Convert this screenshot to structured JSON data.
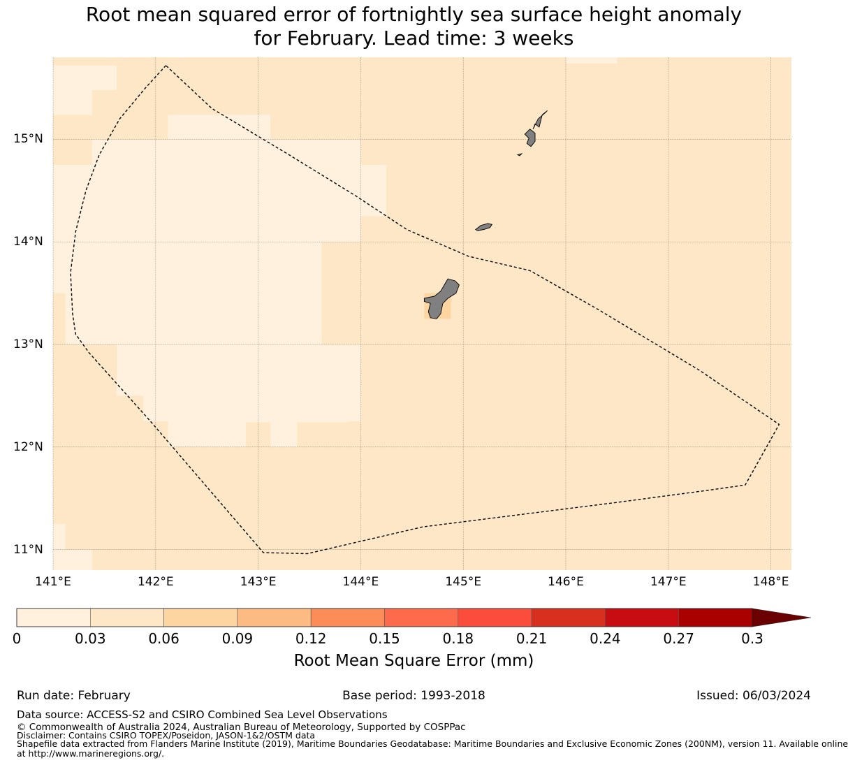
{
  "title": {
    "line1": "Root mean squared error of fortnightly sea surface height anomaly",
    "line2": "for February. Lead time: 3 weeks"
  },
  "map": {
    "lon_range": [
      141.0,
      148.2
    ],
    "lat_range": [
      10.8,
      15.8
    ],
    "lat_ticks": [
      {
        "value": 15,
        "label": "15°N"
      },
      {
        "value": 14,
        "label": "14°N"
      },
      {
        "value": 13,
        "label": "13°N"
      },
      {
        "value": 12,
        "label": "12°N"
      },
      {
        "value": 11,
        "label": "11°N"
      }
    ],
    "lon_ticks": [
      {
        "value": 141,
        "label": "141°E"
      },
      {
        "value": 142,
        "label": "142°E"
      },
      {
        "value": 143,
        "label": "143°E"
      },
      {
        "value": 144,
        "label": "144°E"
      },
      {
        "value": 145,
        "label": "145°E"
      },
      {
        "value": 146,
        "label": "146°E"
      },
      {
        "value": 147,
        "label": "147°E"
      },
      {
        "value": 148,
        "label": "148°E"
      }
    ],
    "gridlines": true,
    "background_rmse_class": "0.03-0.06",
    "colors": {
      "bg_cell": "#fee7c6",
      "low_cell": "#fff1dd",
      "mid_cell": "#fdd5a0",
      "land": "#808080",
      "eez_line": "#000000"
    },
    "low_regions_lonlat": [
      [
        [
          141.0,
          15.72
        ],
        [
          141.62,
          15.72
        ],
        [
          141.62,
          15.48
        ],
        [
          141.38,
          15.48
        ],
        [
          141.38,
          15.24
        ],
        [
          141.0,
          15.24
        ]
      ],
      [
        [
          141.38,
          15.0
        ],
        [
          141.38,
          14.75
        ],
        [
          141.0,
          14.75
        ],
        [
          141.0,
          13.5
        ],
        [
          141.12,
          13.5
        ],
        [
          141.12,
          13.0
        ],
        [
          141.62,
          13.0
        ],
        [
          141.62,
          12.5
        ],
        [
          141.88,
          12.5
        ],
        [
          141.88,
          12.25
        ],
        [
          142.12,
          12.25
        ],
        [
          142.12,
          12.0
        ],
        [
          142.88,
          12.0
        ],
        [
          142.88,
          12.24
        ],
        [
          143.12,
          12.24
        ],
        [
          143.12,
          12.0
        ],
        [
          143.38,
          12.0
        ],
        [
          143.38,
          12.24
        ],
        [
          143.88,
          12.24
        ],
        [
          143.88,
          12.25
        ],
        [
          144.0,
          12.25
        ],
        [
          144.0,
          13.0
        ],
        [
          143.62,
          13.0
        ],
        [
          143.62,
          14.0
        ],
        [
          143.88,
          14.0
        ],
        [
          144.0,
          14.0
        ],
        [
          144.0,
          14.25
        ],
        [
          144.25,
          14.25
        ],
        [
          144.25,
          14.75
        ],
        [
          144.0,
          14.75
        ],
        [
          144.0,
          15.0
        ],
        [
          143.12,
          15.0
        ],
        [
          143.12,
          15.24
        ],
        [
          142.12,
          15.24
        ],
        [
          142.12,
          15.0
        ]
      ],
      [
        [
          141.0,
          11.25
        ],
        [
          141.12,
          11.25
        ],
        [
          141.12,
          11.0
        ],
        [
          141.38,
          11.0
        ],
        [
          141.38,
          10.8
        ],
        [
          141.0,
          10.8
        ]
      ],
      [
        [
          146.0,
          15.8
        ],
        [
          146.5,
          15.8
        ],
        [
          146.5,
          15.74
        ],
        [
          146.0,
          15.74
        ]
      ]
    ],
    "mid_regions_lonlat": [
      [
        [
          144.62,
          13.5
        ],
        [
          144.88,
          13.5
        ],
        [
          144.88,
          13.25
        ],
        [
          144.62,
          13.25
        ]
      ]
    ],
    "eez_boundary_lonlat": [
      [
        142.1,
        15.72
      ],
      [
        141.9,
        15.5
      ],
      [
        141.65,
        15.2
      ],
      [
        141.45,
        14.85
      ],
      [
        141.32,
        14.5
      ],
      [
        141.22,
        14.1
      ],
      [
        141.17,
        13.7
      ],
      [
        141.19,
        13.3
      ],
      [
        141.22,
        13.1
      ],
      [
        141.35,
        12.92
      ],
      [
        141.95,
        12.25
      ],
      [
        143.05,
        10.97
      ],
      [
        143.48,
        10.96
      ],
      [
        144.6,
        11.22
      ],
      [
        146.5,
        11.46
      ],
      [
        147.4,
        11.58
      ],
      [
        147.75,
        11.63
      ],
      [
        148.08,
        12.22
      ],
      [
        147.3,
        12.75
      ],
      [
        146.3,
        13.35
      ],
      [
        145.65,
        13.72
      ],
      [
        145.05,
        13.86
      ],
      [
        144.45,
        14.12
      ],
      [
        143.95,
        14.45
      ],
      [
        143.3,
        14.85
      ],
      [
        142.55,
        15.3
      ]
    ],
    "islands_lonlat": [
      [
        [
          144.62,
          13.45
        ],
        [
          144.72,
          13.47
        ],
        [
          144.78,
          13.52
        ],
        [
          144.85,
          13.64
        ],
        [
          144.92,
          13.62
        ],
        [
          144.96,
          13.58
        ],
        [
          144.93,
          13.5
        ],
        [
          144.85,
          13.45
        ],
        [
          144.8,
          13.4
        ],
        [
          144.78,
          13.3
        ],
        [
          144.74,
          13.25
        ],
        [
          144.68,
          13.26
        ],
        [
          144.66,
          13.32
        ],
        [
          144.68,
          13.4
        ],
        [
          144.62,
          13.42
        ]
      ],
      [
        [
          145.12,
          14.12
        ],
        [
          145.17,
          14.16
        ],
        [
          145.24,
          14.18
        ],
        [
          145.28,
          14.17
        ],
        [
          145.26,
          14.14
        ],
        [
          145.2,
          14.12
        ],
        [
          145.14,
          14.11
        ]
      ],
      [
        [
          145.6,
          15.05
        ],
        [
          145.65,
          15.1
        ],
        [
          145.7,
          15.06
        ],
        [
          145.7,
          14.98
        ],
        [
          145.66,
          14.93
        ],
        [
          145.62,
          14.96
        ],
        [
          145.64,
          15.01
        ]
      ],
      [
        [
          145.68,
          15.1
        ],
        [
          145.73,
          15.2
        ],
        [
          145.8,
          15.26
        ],
        [
          145.82,
          15.28
        ],
        [
          145.77,
          15.24
        ],
        [
          145.74,
          15.12
        ],
        [
          145.7,
          15.15
        ]
      ],
      [
        [
          145.53,
          14.85
        ],
        [
          145.57,
          14.86
        ],
        [
          145.55,
          14.84
        ]
      ]
    ]
  },
  "colorbar": {
    "colors": [
      "#fff1dd",
      "#fee7c6",
      "#fdd5a0",
      "#fdbb84",
      "#fc8d59",
      "#fd6a4c",
      "#fb4d3b",
      "#d8301f",
      "#c70c12",
      "#a90000"
    ],
    "extend_color": "#6b0000",
    "tick_labels": [
      "0",
      "0.03",
      "0.06",
      "0.09",
      "0.12",
      "0.15",
      "0.18",
      "0.21",
      "0.24",
      "0.27",
      "0.3"
    ],
    "label": "Root Mean Square Error (mm)"
  },
  "meta": {
    "run_date": "Run date: February",
    "base_period": "Base period: 1993-2018",
    "issued": "Issued: 06/03/2024"
  },
  "footer": {
    "data_source": "Data source: ACCESS-S2 and CSIRO Combined Sea Level Observations",
    "copyright": "© Commonwealth of Australia 2024, Australian Bureau of Meteorology, Supported by COSPPac",
    "disclaimer": "Disclaimer: Contains CSIRO TOPEX/Poseidon, JASON-1&2/OSTM data",
    "shapefile1": "Shapefile data extracted from Flanders Marine Institute (2019), Maritime Boundaries Geodatabase: Maritime Boundaries and Exclusive Economic Zones (200NM), version 11. Available online",
    "shapefile2": "at http://www.marineregions.org/."
  }
}
